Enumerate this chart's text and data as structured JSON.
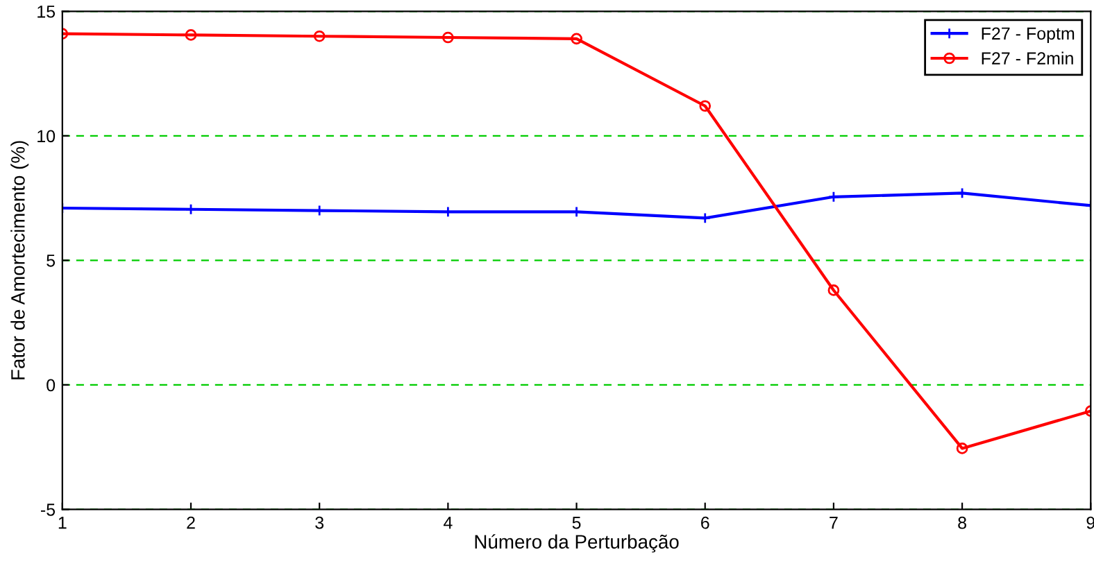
{
  "chart_data": {
    "type": "line",
    "xlabel": "Número da Perturbação",
    "ylabel": "Fator de Amortecimento (%)",
    "x": [
      1,
      2,
      3,
      4,
      5,
      6,
      7,
      8,
      9
    ],
    "series": [
      {
        "name": "F27 - Foptm",
        "color": "#0000ff",
        "marker": "cross",
        "values": [
          7.1,
          7.05,
          7.0,
          6.95,
          6.95,
          6.7,
          7.55,
          7.7,
          7.2
        ]
      },
      {
        "name": "F27 - F2min",
        "color": "#ff0000",
        "marker": "circle",
        "values": [
          14.1,
          14.05,
          14.0,
          13.95,
          13.9,
          11.2,
          3.8,
          -2.55,
          -1.05
        ]
      }
    ],
    "xlim": [
      1,
      9
    ],
    "xticks": [
      1,
      2,
      3,
      4,
      5,
      6,
      7,
      8,
      9
    ],
    "ylim": [
      -5,
      15
    ],
    "yticks": [
      -5,
      0,
      5,
      10,
      15
    ],
    "grid": "y",
    "legend": "top right",
    "line_style": "solid"
  }
}
